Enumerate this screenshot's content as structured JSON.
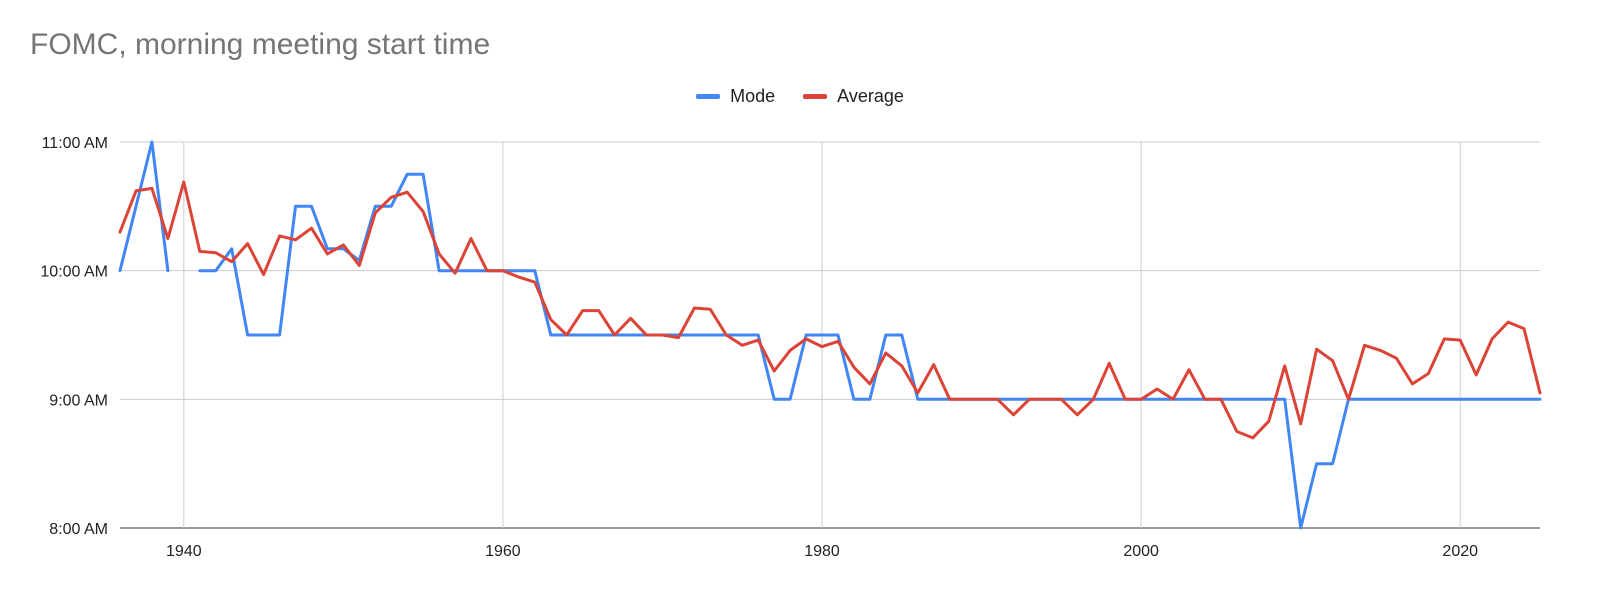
{
  "chart_data": {
    "type": "line",
    "title": "FOMC, morning meeting start time",
    "xlabel": "",
    "ylabel": "",
    "xlim": [
      1936,
      2025
    ],
    "ylim": [
      8,
      11
    ],
    "x_ticks": [
      1940,
      1960,
      1980,
      2000,
      2020
    ],
    "y_ticks": [
      {
        "value": 8,
        "label": "8:00 AM"
      },
      {
        "value": 9,
        "label": "9:00 AM"
      },
      {
        "value": 10,
        "label": "10:00 AM"
      },
      {
        "value": 11,
        "label": "11:00 AM"
      }
    ],
    "grid": true,
    "legend_position": "top",
    "series": [
      {
        "name": "Mode",
        "color": "#4285f4",
        "points": [
          [
            1936,
            10.0
          ],
          [
            1937,
            10.5
          ],
          [
            1938,
            11.0
          ],
          [
            1939,
            10.0
          ],
          [
            1940,
            null
          ],
          [
            1941,
            10.0
          ],
          [
            1942,
            10.0
          ],
          [
            1943,
            10.17
          ],
          [
            1944,
            9.5
          ],
          [
            1945,
            9.5
          ],
          [
            1946,
            9.5
          ],
          [
            1947,
            10.5
          ],
          [
            1948,
            10.5
          ],
          [
            1949,
            10.17
          ],
          [
            1950,
            10.17
          ],
          [
            1951,
            10.08
          ],
          [
            1952,
            10.5
          ],
          [
            1953,
            10.5
          ],
          [
            1954,
            10.75
          ],
          [
            1955,
            10.75
          ],
          [
            1956,
            10.0
          ],
          [
            1957,
            10.0
          ],
          [
            1958,
            10.0
          ],
          [
            1959,
            10.0
          ],
          [
            1960,
            10.0
          ],
          [
            1961,
            10.0
          ],
          [
            1962,
            10.0
          ],
          [
            1963,
            9.5
          ],
          [
            1964,
            9.5
          ],
          [
            1965,
            9.5
          ],
          [
            1966,
            9.5
          ],
          [
            1967,
            9.5
          ],
          [
            1968,
            9.5
          ],
          [
            1969,
            9.5
          ],
          [
            1970,
            9.5
          ],
          [
            1971,
            9.5
          ],
          [
            1972,
            9.5
          ],
          [
            1973,
            9.5
          ],
          [
            1974,
            9.5
          ],
          [
            1975,
            9.5
          ],
          [
            1976,
            9.5
          ],
          [
            1977,
            9.0
          ],
          [
            1978,
            9.0
          ],
          [
            1979,
            9.5
          ],
          [
            1980,
            9.5
          ],
          [
            1981,
            9.5
          ],
          [
            1982,
            9.0
          ],
          [
            1983,
            9.0
          ],
          [
            1984,
            9.5
          ],
          [
            1985,
            9.5
          ],
          [
            1986,
            9.0
          ],
          [
            1987,
            9.0
          ],
          [
            1988,
            9.0
          ],
          [
            1989,
            9.0
          ],
          [
            1990,
            9.0
          ],
          [
            1991,
            9.0
          ],
          [
            1992,
            9.0
          ],
          [
            1993,
            9.0
          ],
          [
            1994,
            9.0
          ],
          [
            1995,
            9.0
          ],
          [
            1996,
            9.0
          ],
          [
            1997,
            9.0
          ],
          [
            1998,
            9.0
          ],
          [
            1999,
            9.0
          ],
          [
            2000,
            9.0
          ],
          [
            2001,
            9.0
          ],
          [
            2002,
            9.0
          ],
          [
            2003,
            9.0
          ],
          [
            2004,
            9.0
          ],
          [
            2005,
            9.0
          ],
          [
            2006,
            9.0
          ],
          [
            2007,
            9.0
          ],
          [
            2008,
            9.0
          ],
          [
            2009,
            9.0
          ],
          [
            2010,
            8.0
          ],
          [
            2011,
            8.5
          ],
          [
            2012,
            8.5
          ],
          [
            2013,
            9.0
          ],
          [
            2014,
            9.0
          ],
          [
            2015,
            9.0
          ],
          [
            2016,
            9.0
          ],
          [
            2017,
            9.0
          ],
          [
            2018,
            9.0
          ],
          [
            2019,
            9.0
          ],
          [
            2020,
            9.0
          ],
          [
            2021,
            9.0
          ],
          [
            2022,
            9.0
          ],
          [
            2023,
            9.0
          ],
          [
            2024,
            9.0
          ],
          [
            2025,
            9.0
          ]
        ]
      },
      {
        "name": "Average",
        "color": "#db4437",
        "points": [
          [
            1936,
            10.3
          ],
          [
            1937,
            10.62
          ],
          [
            1938,
            10.64
          ],
          [
            1939,
            10.25
          ],
          [
            1940,
            10.69
          ],
          [
            1941,
            10.15
          ],
          [
            1942,
            10.14
          ],
          [
            1943,
            10.07
          ],
          [
            1944,
            10.21
          ],
          [
            1945,
            9.97
          ],
          [
            1946,
            10.27
          ],
          [
            1947,
            10.24
          ],
          [
            1948,
            10.33
          ],
          [
            1949,
            10.13
          ],
          [
            1950,
            10.2
          ],
          [
            1951,
            10.04
          ],
          [
            1952,
            10.45
          ],
          [
            1953,
            10.57
          ],
          [
            1954,
            10.61
          ],
          [
            1955,
            10.46
          ],
          [
            1956,
            10.13
          ],
          [
            1957,
            9.98
          ],
          [
            1958,
            10.25
          ],
          [
            1959,
            10.0
          ],
          [
            1960,
            10.0
          ],
          [
            1961,
            9.95
          ],
          [
            1962,
            9.91
          ],
          [
            1963,
            9.62
          ],
          [
            1964,
            9.5
          ],
          [
            1965,
            9.69
          ],
          [
            1966,
            9.69
          ],
          [
            1967,
            9.5
          ],
          [
            1968,
            9.63
          ],
          [
            1969,
            9.5
          ],
          [
            1970,
            9.5
          ],
          [
            1971,
            9.48
          ],
          [
            1972,
            9.71
          ],
          [
            1973,
            9.7
          ],
          [
            1974,
            9.5
          ],
          [
            1975,
            9.42
          ],
          [
            1976,
            9.46
          ],
          [
            1977,
            9.22
          ],
          [
            1978,
            9.38
          ],
          [
            1979,
            9.47
          ],
          [
            1980,
            9.41
          ],
          [
            1981,
            9.45
          ],
          [
            1982,
            9.25
          ],
          [
            1983,
            9.12
          ],
          [
            1984,
            9.36
          ],
          [
            1985,
            9.26
          ],
          [
            1986,
            9.05
          ],
          [
            1987,
            9.27
          ],
          [
            1988,
            9.0
          ],
          [
            1989,
            9.0
          ],
          [
            1990,
            9.0
          ],
          [
            1991,
            9.0
          ],
          [
            1992,
            8.88
          ],
          [
            1993,
            9.0
          ],
          [
            1994,
            9.0
          ],
          [
            1995,
            9.0
          ],
          [
            1996,
            8.88
          ],
          [
            1997,
            9.0
          ],
          [
            1998,
            9.28
          ],
          [
            1999,
            9.0
          ],
          [
            2000,
            9.0
          ],
          [
            2001,
            9.08
          ],
          [
            2002,
            9.0
          ],
          [
            2003,
            9.23
          ],
          [
            2004,
            9.0
          ],
          [
            2005,
            9.0
          ],
          [
            2006,
            8.75
          ],
          [
            2007,
            8.7
          ],
          [
            2008,
            8.83
          ],
          [
            2009,
            9.26
          ],
          [
            2010,
            8.81
          ],
          [
            2011,
            9.39
          ],
          [
            2012,
            9.3
          ],
          [
            2013,
            9.0
          ],
          [
            2014,
            9.42
          ],
          [
            2015,
            9.38
          ],
          [
            2016,
            9.32
          ],
          [
            2017,
            9.12
          ],
          [
            2018,
            9.2
          ],
          [
            2019,
            9.47
          ],
          [
            2020,
            9.46
          ],
          [
            2021,
            9.19
          ],
          [
            2022,
            9.47
          ],
          [
            2023,
            9.6
          ],
          [
            2024,
            9.55
          ],
          [
            2025,
            9.05
          ]
        ]
      }
    ]
  }
}
